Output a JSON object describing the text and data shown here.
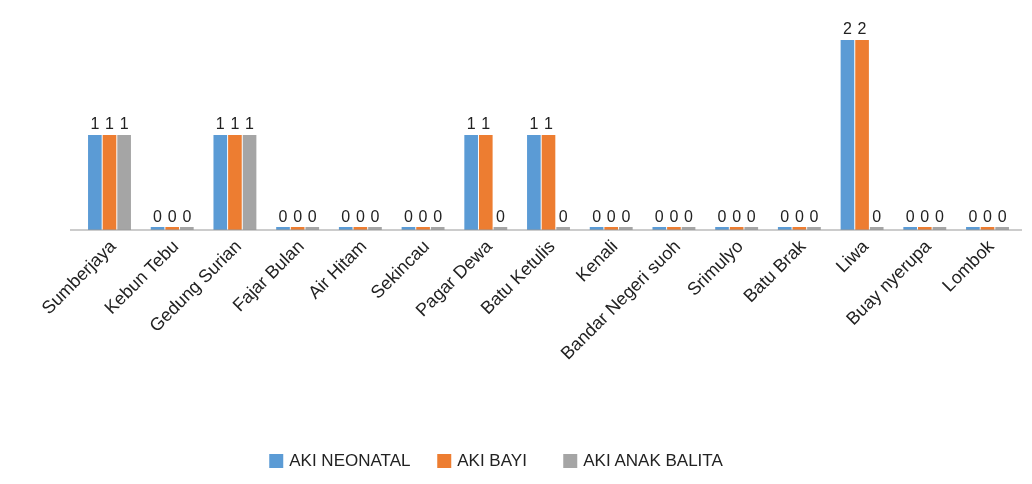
{
  "chart_data": {
    "type": "bar",
    "categories": [
      "Sumberjaya",
      "Kebun Tebu",
      "Gedung Surian",
      "Fajar Bulan",
      "Air Hitam",
      "Sekincau",
      "Pagar Dewa",
      "Batu Ketulis",
      "Kenali",
      "Bandar Negeri suoh",
      "Srimulyo",
      "Batu Brak",
      "Liwa",
      "Buay nyerupa",
      "Lombok"
    ],
    "series": [
      {
        "name": "AKI NEONATAL",
        "color": "#5b9bd5",
        "values": [
          1,
          0,
          1,
          0,
          0,
          0,
          1,
          1,
          0,
          0,
          0,
          0,
          2,
          0,
          0
        ]
      },
      {
        "name": "AKI BAYI",
        "color": "#ed7d31",
        "values": [
          1,
          0,
          1,
          0,
          0,
          0,
          1,
          1,
          0,
          0,
          0,
          0,
          2,
          0,
          0
        ]
      },
      {
        "name": "AKI ANAK BALITA",
        "color": "#a5a5a5",
        "values": [
          1,
          0,
          1,
          0,
          0,
          0,
          0,
          0,
          0,
          0,
          0,
          0,
          0,
          0,
          0
        ]
      }
    ],
    "data_labels": true,
    "legend": "bottom"
  }
}
